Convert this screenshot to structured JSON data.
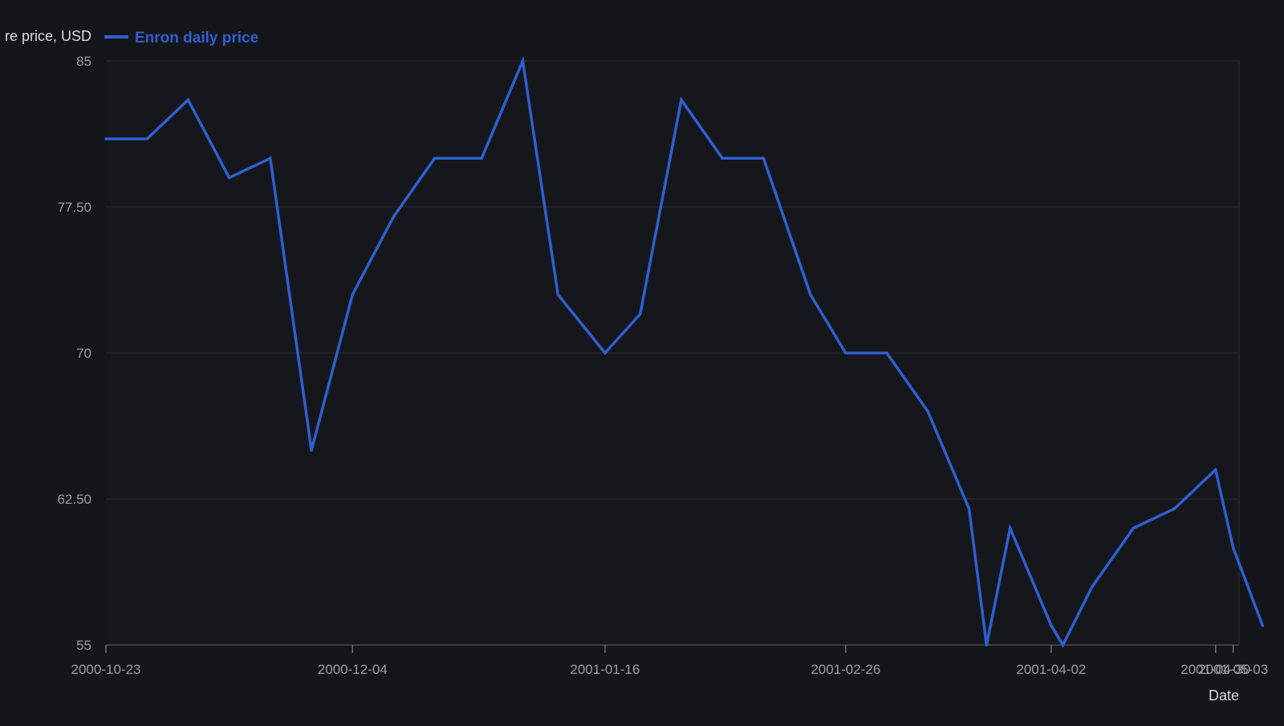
{
  "chart_data": {
    "type": "line",
    "title": "",
    "xlabel": "Date",
    "ylabel": "re price, USD",
    "ylim": [
      55,
      85
    ],
    "xlim": [
      "2000-10-23",
      "2001-05-04"
    ],
    "grid": true,
    "legend_position": "top-left",
    "y_ticks": [
      {
        "value": 55,
        "label": "55"
      },
      {
        "value": 62.5,
        "label": "62.50"
      },
      {
        "value": 70,
        "label": "70"
      },
      {
        "value": 77.5,
        "label": "77.50"
      },
      {
        "value": 85,
        "label": "85"
      }
    ],
    "x_ticks": [
      {
        "date": "2000-10-23",
        "label": "2000-10-23"
      },
      {
        "date": "2000-12-04",
        "label": "2000-12-04"
      },
      {
        "date": "2001-01-16",
        "label": "2001-01-16"
      },
      {
        "date": "2001-02-26",
        "label": "2001-02-26"
      },
      {
        "date": "2001-04-02",
        "label": "2001-04-02"
      },
      {
        "date": "2001-04-30",
        "label": "2001-04-30"
      },
      {
        "date": "2001-05-03",
        "label": "2001-05-03"
      }
    ],
    "series": [
      {
        "name": "Enron daily price",
        "color": "#2f5fd0",
        "points": [
          {
            "x": "2000-10-23",
            "y": 81
          },
          {
            "x": "2000-10-30",
            "y": 81
          },
          {
            "x": "2000-11-06",
            "y": 83
          },
          {
            "x": "2000-11-13",
            "y": 79
          },
          {
            "x": "2000-11-20",
            "y": 80
          },
          {
            "x": "2000-11-27",
            "y": 65
          },
          {
            "x": "2000-12-04",
            "y": 73
          },
          {
            "x": "2000-12-11",
            "y": 77
          },
          {
            "x": "2000-12-18",
            "y": 80
          },
          {
            "x": "2000-12-26",
            "y": 80
          },
          {
            "x": "2001-01-02",
            "y": 85
          },
          {
            "x": "2001-01-08",
            "y": 73
          },
          {
            "x": "2001-01-16",
            "y": 70
          },
          {
            "x": "2001-01-22",
            "y": 72
          },
          {
            "x": "2001-01-29",
            "y": 83
          },
          {
            "x": "2001-02-05",
            "y": 80
          },
          {
            "x": "2001-02-12",
            "y": 80
          },
          {
            "x": "2001-02-20",
            "y": 73
          },
          {
            "x": "2001-02-26",
            "y": 70
          },
          {
            "x": "2001-03-05",
            "y": 70
          },
          {
            "x": "2001-03-12",
            "y": 67
          },
          {
            "x": "2001-03-19",
            "y": 62
          },
          {
            "x": "2001-03-22",
            "y": 55
          },
          {
            "x": "2001-03-26",
            "y": 61
          },
          {
            "x": "2001-04-02",
            "y": 56
          },
          {
            "x": "2001-04-04",
            "y": 55
          },
          {
            "x": "2001-04-09",
            "y": 58
          },
          {
            "x": "2001-04-16",
            "y": 61
          },
          {
            "x": "2001-04-23",
            "y": 62
          },
          {
            "x": "2001-04-30",
            "y": 64
          },
          {
            "x": "2001-05-03",
            "y": 60
          },
          {
            "x": "2001-05-08",
            "y": 56
          }
        ]
      }
    ]
  }
}
